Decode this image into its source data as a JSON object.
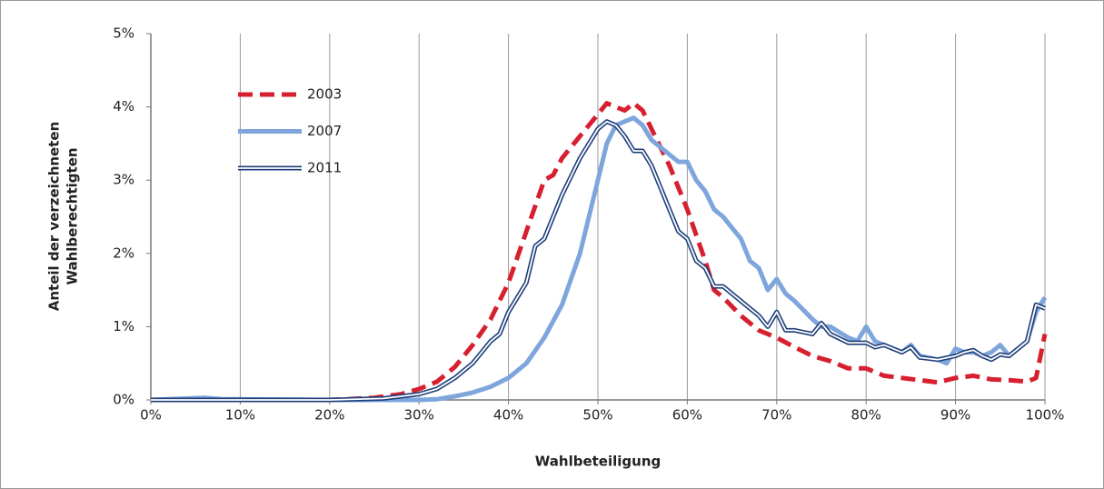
{
  "chart_data": {
    "type": "line",
    "xlabel": "Wahlbeteiligung",
    "ylabel": [
      "Anteil der verzeichneten",
      "Wahlberechtigten"
    ],
    "xlim": [
      0,
      100
    ],
    "xticks": [
      {
        "value": 0,
        "label": "0%"
      },
      {
        "value": 10,
        "label": "10%"
      },
      {
        "value": 20,
        "label": "20%"
      },
      {
        "value": 30,
        "label": "30%"
      },
      {
        "value": 40,
        "label": "40%"
      },
      {
        "value": 50,
        "label": "50%"
      },
      {
        "value": 60,
        "label": "60%"
      },
      {
        "value": 70,
        "label": "70%"
      },
      {
        "value": 80,
        "label": "80%"
      },
      {
        "value": 90,
        "label": "90%"
      },
      {
        "value": 100,
        "label": "100%"
      }
    ],
    "ylim": [
      0,
      5
    ],
    "yticks": [
      {
        "value": 0,
        "label": "0%"
      },
      {
        "value": 1,
        "label": "1%"
      },
      {
        "value": 2,
        "label": "2%"
      },
      {
        "value": 3,
        "label": "3%"
      },
      {
        "value": 4,
        "label": "4%"
      },
      {
        "value": 5,
        "label": "5%"
      }
    ],
    "grid": "x",
    "legend": "upper left",
    "series": [
      {
        "name": "2003",
        "color": "#d7202f",
        "style": "dashed",
        "x": [
          0,
          10,
          20,
          22,
          25,
          28,
          30,
          32,
          34,
          36,
          38,
          40,
          42,
          44,
          45,
          46,
          48,
          50,
          51,
          52,
          53,
          54,
          55,
          56,
          58,
          60,
          62,
          63,
          64,
          66,
          68,
          70,
          72,
          74,
          76,
          78,
          80,
          82,
          84,
          86,
          88,
          90,
          92,
          94,
          96,
          98,
          99,
          100
        ],
        "values": [
          0,
          0,
          0,
          0.01,
          0.03,
          0.08,
          0.15,
          0.25,
          0.45,
          0.75,
          1.1,
          1.6,
          2.3,
          3.0,
          3.07,
          3.3,
          3.6,
          3.9,
          4.05,
          4.0,
          3.95,
          4.05,
          3.95,
          3.7,
          3.2,
          2.6,
          1.9,
          1.5,
          1.4,
          1.15,
          0.95,
          0.85,
          0.72,
          0.6,
          0.53,
          0.43,
          0.43,
          0.33,
          0.3,
          0.27,
          0.24,
          0.3,
          0.33,
          0.28,
          0.27,
          0.25,
          0.3,
          0.9
        ]
      },
      {
        "name": "2007",
        "color": "#7ea6dc",
        "style": "solid",
        "x": [
          0,
          6,
          8,
          10,
          20,
          28,
          30,
          32,
          34,
          36,
          38,
          40,
          42,
          44,
          46,
          48,
          50,
          51,
          52,
          53,
          54,
          55,
          56,
          58,
          59,
          60,
          61,
          62,
          63,
          64,
          66,
          67,
          68,
          69,
          70,
          71,
          72,
          74,
          75,
          76,
          78,
          79,
          80,
          81,
          82,
          84,
          85,
          86,
          88,
          89,
          90,
          91,
          92,
          93,
          94,
          95,
          96,
          98,
          99,
          100
        ],
        "values": [
          0,
          0.03,
          0.01,
          0.01,
          0,
          0,
          0,
          0.01,
          0.05,
          0.1,
          0.18,
          0.3,
          0.5,
          0.85,
          1.3,
          2.0,
          3.0,
          3.5,
          3.75,
          3.8,
          3.85,
          3.75,
          3.55,
          3.35,
          3.25,
          3.25,
          3.0,
          2.85,
          2.6,
          2.5,
          2.2,
          1.9,
          1.8,
          1.5,
          1.65,
          1.45,
          1.35,
          1.1,
          1.0,
          1.0,
          0.85,
          0.8,
          1.0,
          0.8,
          0.75,
          0.65,
          0.75,
          0.6,
          0.55,
          0.5,
          0.7,
          0.65,
          0.65,
          0.6,
          0.65,
          0.75,
          0.6,
          0.8,
          1.2,
          1.4
        ]
      },
      {
        "name": "2011",
        "color": "#1f3f7a",
        "style": "double",
        "x": [
          0,
          20,
          26,
          28,
          30,
          32,
          34,
          36,
          38,
          39,
          40,
          42,
          43,
          44,
          46,
          48,
          49,
          50,
          51,
          52,
          53,
          54,
          55,
          56,
          58,
          59,
          60,
          61,
          62,
          63,
          64,
          66,
          68,
          69,
          70,
          71,
          72,
          74,
          75,
          76,
          78,
          80,
          81,
          82,
          84,
          85,
          86,
          88,
          90,
          91,
          92,
          93,
          94,
          95,
          96,
          98,
          99,
          100
        ],
        "values": [
          0,
          0,
          0.02,
          0.05,
          0.08,
          0.15,
          0.3,
          0.5,
          0.8,
          0.9,
          1.2,
          1.6,
          2.1,
          2.2,
          2.8,
          3.3,
          3.5,
          3.7,
          3.8,
          3.75,
          3.6,
          3.4,
          3.4,
          3.2,
          2.6,
          2.3,
          2.2,
          1.9,
          1.8,
          1.55,
          1.55,
          1.35,
          1.15,
          1.0,
          1.2,
          0.95,
          0.95,
          0.9,
          1.05,
          0.9,
          0.78,
          0.78,
          0.72,
          0.75,
          0.65,
          0.72,
          0.58,
          0.55,
          0.6,
          0.65,
          0.68,
          0.6,
          0.55,
          0.62,
          0.6,
          0.8,
          1.3,
          1.25
        ]
      }
    ]
  }
}
